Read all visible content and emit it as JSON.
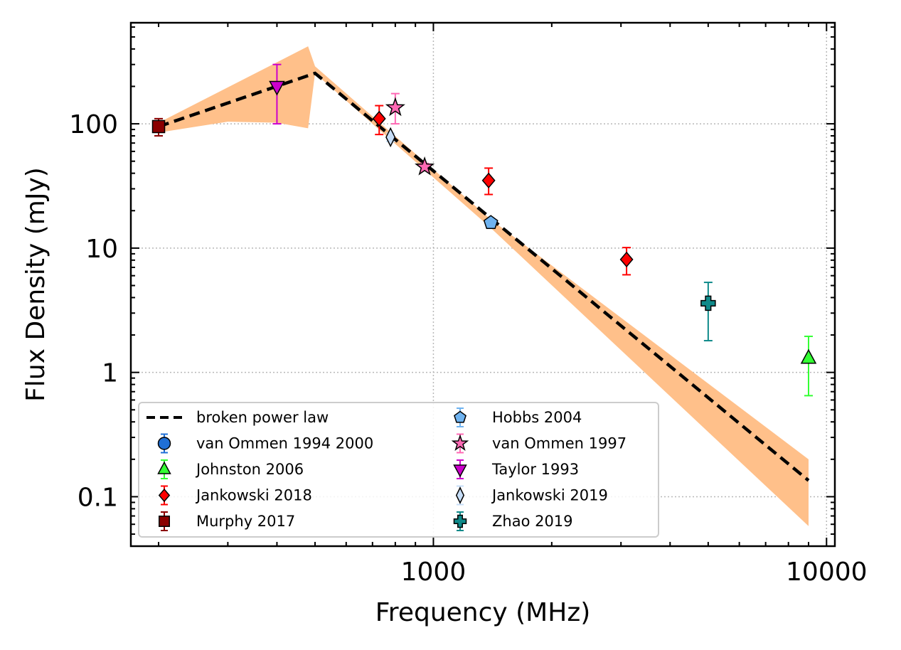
{
  "chart_data": {
    "type": "scatter",
    "xlabel": "Frequency (MHz)",
    "ylabel": "Flux Density (mJy)",
    "xscale": "log",
    "yscale": "log",
    "xlim": [
      170,
      10500
    ],
    "ylim": [
      0.04,
      650
    ],
    "grid": true,
    "legend_position": "lower-left",
    "x_ticks": [
      {
        "value": 1000,
        "label": "1000"
      },
      {
        "value": 10000,
        "label": "10000"
      }
    ],
    "y_ticks": [
      {
        "value": 0.1,
        "label": "0.1"
      },
      {
        "value": 1,
        "label": "1"
      },
      {
        "value": 10,
        "label": "10"
      },
      {
        "value": 100,
        "label": "100"
      }
    ],
    "fit": {
      "name": "broken power law",
      "color": "#000000",
      "points": [
        [
          200,
          95
        ],
        [
          500,
          255
        ],
        [
          9000,
          0.135
        ]
      ],
      "band_color": "#ffc08a",
      "band_upper": [
        [
          200,
          102
        ],
        [
          480,
          420
        ],
        [
          500,
          290
        ],
        [
          1400,
          17
        ],
        [
          9000,
          0.2
        ]
      ],
      "band_lower": [
        [
          9000,
          0.058
        ],
        [
          1400,
          14.5
        ],
        [
          500,
          255
        ],
        [
          480,
          92
        ],
        [
          400,
          102
        ],
        [
          300,
          104
        ],
        [
          200,
          85
        ]
      ]
    },
    "series": [
      {
        "name": "van Ommen 1994 2000",
        "marker": "circle",
        "color": "#1f6fd6",
        "points": []
      },
      {
        "name": "Johnston 2006",
        "marker": "triangle-up",
        "color": "#33ff33",
        "points": [
          {
            "x": 9000,
            "y": 1.3,
            "ylo": 0.65,
            "yhi": 1.95
          }
        ]
      },
      {
        "name": "Jankowski 2018",
        "marker": "diamond",
        "color": "#ff0000",
        "points": [
          {
            "x": 728,
            "y": 110,
            "ylo": 82,
            "yhi": 140
          },
          {
            "x": 1382,
            "y": 35,
            "ylo": 27,
            "yhi": 44
          },
          {
            "x": 3100,
            "y": 8.1,
            "ylo": 6.1,
            "yhi": 10.1
          }
        ]
      },
      {
        "name": "Murphy 2017",
        "marker": "square",
        "color": "#8b0000",
        "points": [
          {
            "x": 200,
            "y": 95,
            "ylo": 80,
            "yhi": 110
          }
        ]
      },
      {
        "name": "Hobbs 2004",
        "marker": "pentagon",
        "color": "#6fb3f0",
        "points": [
          {
            "x": 1400,
            "y": 16,
            "ylo": 15,
            "yhi": 17
          }
        ]
      },
      {
        "name": "van Ommen 1997",
        "marker": "star",
        "color": "#ff69b4",
        "points": [
          {
            "x": 800,
            "y": 135,
            "ylo": 100,
            "yhi": 175
          },
          {
            "x": 950,
            "y": 45,
            "ylo": 42,
            "yhi": 48
          }
        ]
      },
      {
        "name": "Taylor 1993",
        "marker": "triangle-down",
        "color": "#cc00cc",
        "points": [
          {
            "x": 400,
            "y": 200,
            "ylo": 100,
            "yhi": 300
          }
        ]
      },
      {
        "name": "Jankowski 2019",
        "marker": "thin-diamond",
        "color": "#c6ddf7",
        "points": [
          {
            "x": 778,
            "y": 78,
            "ylo": 72,
            "yhi": 84
          }
        ]
      },
      {
        "name": "Zhao 2019",
        "marker": "plus",
        "color": "#0f8a8a",
        "points": [
          {
            "x": 5000,
            "y": 3.6,
            "ylo": 1.8,
            "yhi": 5.3
          }
        ]
      }
    ]
  }
}
